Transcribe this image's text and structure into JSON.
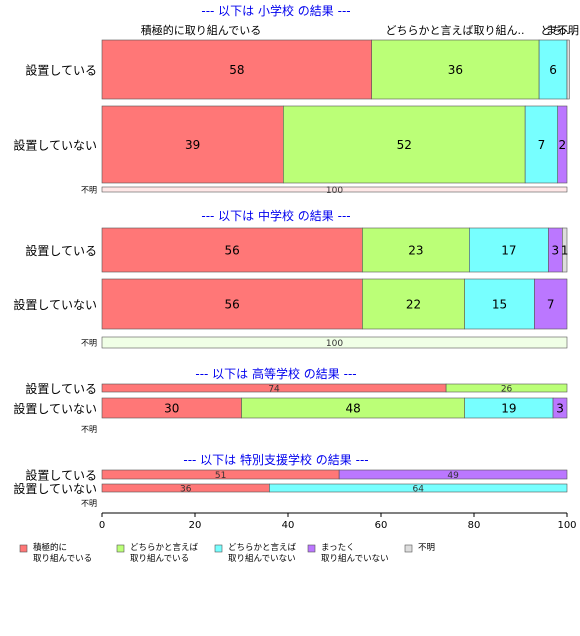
{
  "chart_data": {
    "type": "bar",
    "orientation": "horizontal",
    "stacked": true,
    "xlim": [
      0,
      100
    ],
    "x_ticks": [
      "0",
      "20",
      "40",
      "60",
      "80",
      "100"
    ],
    "grid": false,
    "legend_position": "bottom",
    "top_category_labels": [
      "積極的に取り組んでいる",
      "どちらかと言えば取り組ん..",
      "どち..",
      "まっ..",
      "不明"
    ],
    "categories": [
      {
        "key": "sekkyoku",
        "legend": [
          "積極的に",
          "取り組んでいる"
        ],
        "color": "#ff7777"
      },
      {
        "key": "dochiraka_yes",
        "legend": [
          "どちらかと言えば",
          "取り組んでいる"
        ],
        "color": "#bbff77"
      },
      {
        "key": "dochiraka_no",
        "legend": [
          "どちらかと言えば",
          "取り組んでいない"
        ],
        "color": "#77ffff"
      },
      {
        "key": "mattaku",
        "legend": [
          "まったく",
          "取り組んでいない"
        ],
        "color": "#bb77ff"
      },
      {
        "key": "fumei",
        "legend": [
          "不明"
        ],
        "color": "#dddddd"
      }
    ],
    "panels": [
      {
        "title": "--- 以下は 小学校 の結果 ---",
        "rows": [
          {
            "label": "設置している",
            "values": [
              58,
              36,
              6,
              0,
              0.5
            ]
          },
          {
            "label": "設置していない",
            "values": [
              39,
              52,
              7,
              2,
              0
            ]
          },
          {
            "label": "不明",
            "values": [
              100,
              0,
              0,
              0,
              0
            ]
          }
        ]
      },
      {
        "title": "--- 以下は 中学校 の結果 ---",
        "rows": [
          {
            "label": "設置している",
            "values": [
              56,
              23,
              17,
              3,
              1
            ]
          },
          {
            "label": "設置していない",
            "values": [
              56,
              22,
              15,
              7,
              0
            ]
          },
          {
            "label": "不明",
            "values": [
              0,
              100,
              0,
              0,
              0
            ]
          }
        ]
      },
      {
        "title": "--- 以下は 高等学校 の結果 ---",
        "rows": [
          {
            "label": "設置している",
            "values": [
              74,
              26,
              0,
              0,
              0
            ]
          },
          {
            "label": "設置していない",
            "values": [
              30,
              48,
              19,
              3,
              0
            ]
          },
          {
            "label": "不明",
            "values": [
              0,
              0,
              0,
              0,
              0
            ]
          }
        ]
      },
      {
        "title": "--- 以下は 特別支援学校 の結果 ---",
        "rows": [
          {
            "label": "設置している",
            "values": [
              51,
              0,
              0,
              49,
              0
            ]
          },
          {
            "label": "設置していない",
            "values": [
              36,
              0,
              64,
              0,
              0
            ]
          },
          {
            "label": "不明",
            "values": [
              0,
              0,
              0,
              0,
              0
            ]
          }
        ]
      }
    ]
  }
}
